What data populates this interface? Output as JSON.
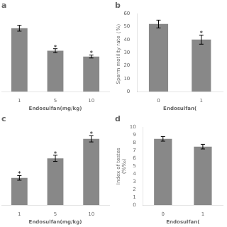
{
  "chart_data": [
    {
      "type": "bar",
      "title": "a",
      "categories": [
        "1",
        "5",
        "10"
      ],
      "values": [
        65,
        42,
        36
      ],
      "errors": [
        3,
        2,
        1.5
      ],
      "annotations": [
        {
          "text": "*",
          "category": "5"
        },
        {
          "text": "*",
          "category": "10"
        }
      ],
      "x_label": "Endosulfan(mg/kg)",
      "color": "#888888",
      "ylim": [
        0,
        80
      ],
      "tick_labels": "x",
      "grid": false
    },
    {
      "type": "bar",
      "title": "b",
      "categories": [
        "0",
        "1"
      ],
      "values": [
        52,
        40
      ],
      "errors": [
        3,
        3.5
      ],
      "annotations": [
        {
          "text": "*",
          "category": "1"
        }
      ],
      "x_label": "Endosulfan(",
      "y_label": "Sperm motility rate（%）",
      "color": "#888888",
      "ylim": [
        0,
        60
      ],
      "yticks": [
        0,
        10,
        20,
        30,
        40,
        50,
        60
      ],
      "grid": false
    },
    {
      "type": "bar",
      "title": "c",
      "categories": [
        "1",
        "5",
        "10"
      ],
      "values": [
        3.5,
        6.0,
        8.5
      ],
      "errors": [
        0.3,
        0.4,
        0.4
      ],
      "annotations": [
        {
          "text": "*",
          "category": "1"
        },
        {
          "text": "*",
          "category": "5"
        },
        {
          "text": "*",
          "category": "10"
        }
      ],
      "x_label": "Endosulfan(mg/kg)",
      "color": "#888888",
      "ylim": [
        0,
        10
      ],
      "tick_labels": "x",
      "grid": false
    },
    {
      "type": "bar",
      "title": "d",
      "categories": [
        "0",
        "1"
      ],
      "values": [
        8.5,
        7.5
      ],
      "errors": [
        0.3,
        0.3
      ],
      "x_label": "Endosulfan(",
      "y_label": "Index of testes\n(%‰)",
      "color": "#888888",
      "ylim": [
        0,
        10
      ],
      "yticks": [
        0,
        1,
        2,
        3,
        4,
        5,
        6,
        7,
        8,
        9,
        10
      ],
      "grid": false
    }
  ]
}
